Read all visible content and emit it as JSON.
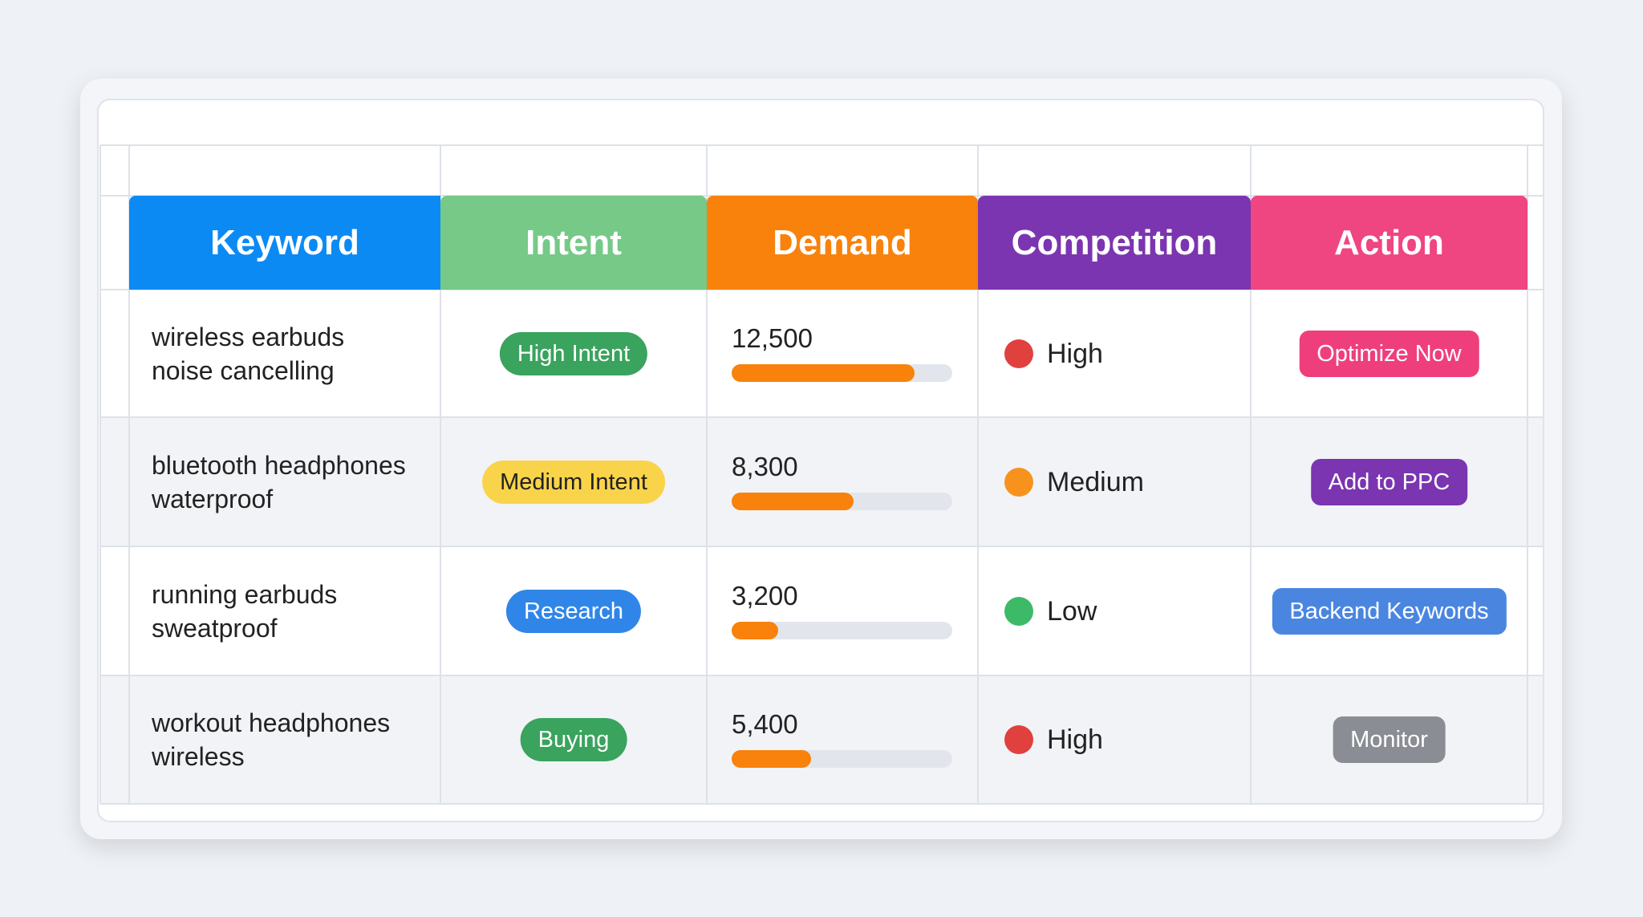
{
  "table": {
    "columns": [
      {
        "label": "Keyword",
        "color": "#0b8af4"
      },
      {
        "label": "Intent",
        "color": "#76c987"
      },
      {
        "label": "Demand",
        "color": "#f8820b"
      },
      {
        "label": "Competition",
        "color": "#7b35b0"
      },
      {
        "label": "Action",
        "color": "#ef4581"
      }
    ],
    "rows": [
      {
        "keyword": "wireless earbuds\nnoise cancelling",
        "intent": {
          "label": "High Intent",
          "color": "#3aa35d"
        },
        "demand": {
          "value": 12500,
          "label": "12,500"
        },
        "competition": {
          "label": "High",
          "color": "#e0403e"
        },
        "action": {
          "label": "Optimize Now",
          "color": "#ee3f7c"
        }
      },
      {
        "keyword": "bluetooth headphones\nwaterproof",
        "intent": {
          "label": "Medium Intent",
          "color": "#f9d44a"
        },
        "demand": {
          "value": 8300,
          "label": "8,300"
        },
        "competition": {
          "label": "Medium",
          "color": "#f7921c"
        },
        "action": {
          "label": "Add to PPC",
          "color": "#7b35b0"
        }
      },
      {
        "keyword": "running earbuds\nsweatproof",
        "intent": {
          "label": "Research",
          "color": "#2f86e8"
        },
        "demand": {
          "value": 3200,
          "label": "3,200"
        },
        "competition": {
          "label": "Low",
          "color": "#3dba68"
        },
        "action": {
          "label": "Backend Keywords",
          "color": "#4a86e0"
        }
      },
      {
        "keyword": "workout headphones\nwireless",
        "intent": {
          "label": "Buying",
          "color": "#3aa35d"
        },
        "demand": {
          "value": 5400,
          "label": "5,400"
        },
        "competition": {
          "label": "High",
          "color": "#e0403e"
        },
        "action": {
          "label": "Monitor",
          "color": "#8a8d93"
        }
      }
    ]
  }
}
